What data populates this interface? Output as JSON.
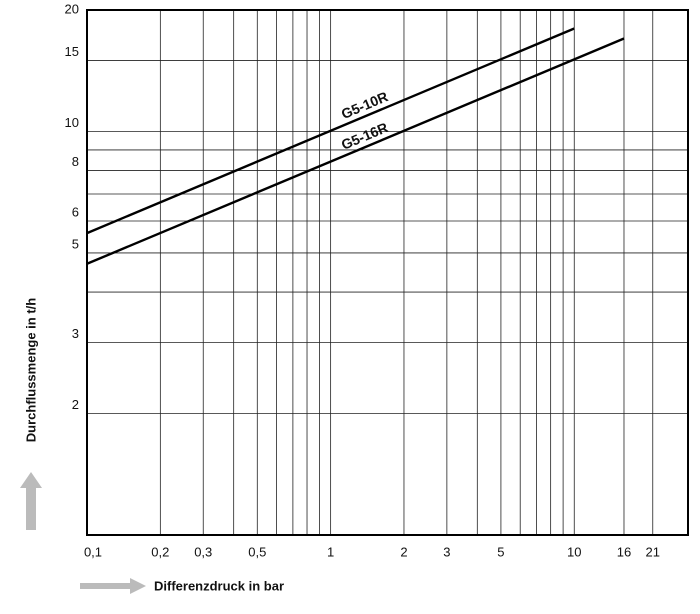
{
  "chart_data": {
    "type": "line",
    "x_label": "Differenzdruck in bar",
    "y_label": "Durchflussmenge in t/h",
    "xscale": "log",
    "yscale": "log",
    "xlim": [
      0.1,
      29.3
    ],
    "ylim": [
      1,
      20
    ],
    "xticks": [
      {
        "value": 0.1,
        "label": "0,1"
      },
      {
        "value": 0.2,
        "label": "0,2"
      },
      {
        "value": 0.3,
        "label": "0,3"
      },
      {
        "value": 0.5,
        "label": "0,5"
      },
      1,
      2,
      3,
      5,
      10,
      16,
      21
    ],
    "xminor": [
      0.4,
      0.6,
      0.7,
      0.8,
      0.9,
      4,
      6,
      7,
      8,
      9
    ],
    "yticks": [
      2,
      3,
      5,
      6,
      8,
      10,
      15,
      20
    ],
    "yminor": [
      4,
      7,
      9
    ],
    "grid": true,
    "series": [
      {
        "name": "G5-10R",
        "color": "#000000",
        "x": [
          0.1,
          10
        ],
        "values": [
          5.6,
          18
        ]
      },
      {
        "name": "G5-16R",
        "color": "#000000",
        "x": [
          0.1,
          16
        ],
        "values": [
          4.7,
          17
        ]
      }
    ]
  }
}
